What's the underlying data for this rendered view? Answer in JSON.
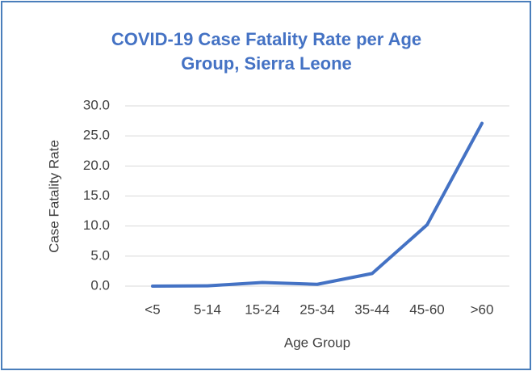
{
  "chart_data": {
    "type": "line",
    "title": "COVID-19 Case Fatality Rate per Age Group, Sierra Leone",
    "x_label": "Age Group",
    "y_label": "Case Fatality Rate",
    "categories": [
      "<5",
      "5-14",
      "15-24",
      "25-34",
      "35-44",
      "45-60",
      ">60"
    ],
    "series": [
      {
        "name": "Case Fatality Rate",
        "color": "#4472c4",
        "values": [
          0,
          0.05,
          0.6,
          0.3,
          2.1,
          10.2,
          27.1
        ]
      }
    ],
    "ylim": [
      0,
      30
    ],
    "yticks": [
      {
        "value": 0,
        "label": "0.0"
      },
      {
        "value": 5,
        "label": "5.0"
      },
      {
        "value": 10,
        "label": "10.0"
      },
      {
        "value": 15,
        "label": "15.0"
      },
      {
        "value": 20,
        "label": "20.0"
      },
      {
        "value": 25,
        "label": "25.0"
      },
      {
        "value": 30,
        "label": "30.0"
      }
    ],
    "grid": true,
    "legend": false
  }
}
